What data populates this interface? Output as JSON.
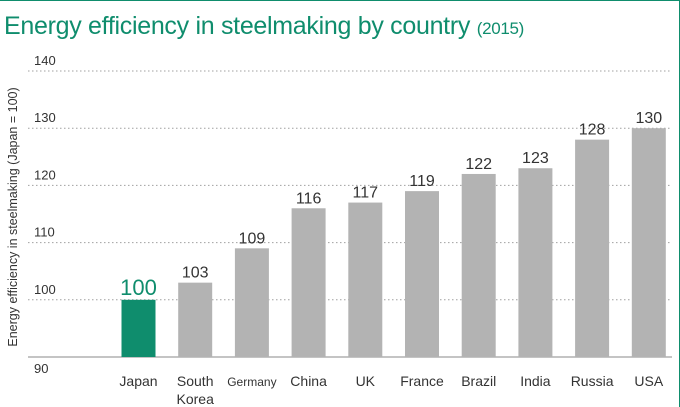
{
  "header": {
    "title": "Energy efficiency in steelmaking by country",
    "year": "(2015)"
  },
  "colors": {
    "accent": "#0f8d6d",
    "bar": "#b3b3b3",
    "grid": "#a0a0a0",
    "text": "#333333"
  },
  "chart_data": {
    "type": "bar",
    "title": "Energy efficiency in steelmaking by country (2015)",
    "ylabel": "Energy efficiency in steelmaking (Japan = 100)",
    "xlabel": "",
    "ylim": [
      90,
      140
    ],
    "yticks": [
      90,
      100,
      110,
      120,
      130,
      140
    ],
    "grid": true,
    "categories": [
      "Japan",
      "South Korea",
      "Germany",
      "China",
      "UK",
      "France",
      "Brazil",
      "India",
      "Russia",
      "USA"
    ],
    "category_lines": [
      [
        "Japan"
      ],
      [
        "South",
        "Korea"
      ],
      [
        "Germany"
      ],
      [
        "China"
      ],
      [
        "UK"
      ],
      [
        "France"
      ],
      [
        "Brazil"
      ],
      [
        "India"
      ],
      [
        "Russia"
      ],
      [
        "USA"
      ]
    ],
    "values": [
      100,
      103,
      109,
      116,
      117,
      119,
      122,
      123,
      128,
      130
    ],
    "highlight_index": 0
  }
}
